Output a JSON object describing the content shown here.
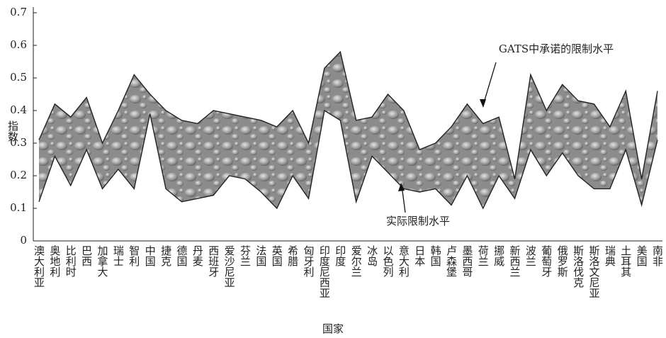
{
  "chart_data": {
    "type": "area",
    "x_label": "国家",
    "y_label": "指数",
    "categories": [
      "澳大利亚",
      "奥地利",
      "比利时",
      "巴西",
      "加拿大",
      "瑞士",
      "智利",
      "中国",
      "捷克",
      "德国",
      "丹麦",
      "西班牙",
      "爱沙尼亚",
      "芬兰",
      "法国",
      "英国",
      "希腊",
      "匈牙利",
      "印度尼西亚",
      "印度",
      "爱尔兰",
      "冰岛",
      "以色列",
      "意大利",
      "日本",
      "韩国",
      "卢森堡",
      "墨西哥",
      "荷兰",
      "挪威",
      "新西兰",
      "波兰",
      "葡萄牙",
      "俄罗斯",
      "斯洛伐克",
      "斯洛文尼亚",
      "瑞典",
      "土耳其",
      "美国",
      "南非"
    ],
    "series": [
      {
        "name": "GATS中承诺的限制水平",
        "color": "#222222",
        "values": [
          0.31,
          0.42,
          0.38,
          0.44,
          0.3,
          0.4,
          0.51,
          0.45,
          0.4,
          0.37,
          0.36,
          0.4,
          0.39,
          0.38,
          0.37,
          0.35,
          0.4,
          0.3,
          0.53,
          0.58,
          0.37,
          0.38,
          0.45,
          0.4,
          0.28,
          0.3,
          0.35,
          0.42,
          0.36,
          0.38,
          0.19,
          0.51,
          0.4,
          0.48,
          0.43,
          0.42,
          0.35,
          0.46,
          0.19,
          0.46
        ]
      },
      {
        "name": "实际限制水平",
        "color": "#222222",
        "values": [
          0.12,
          0.26,
          0.17,
          0.28,
          0.16,
          0.22,
          0.16,
          0.39,
          0.16,
          0.12,
          0.13,
          0.14,
          0.2,
          0.19,
          0.15,
          0.1,
          0.2,
          0.13,
          0.4,
          0.37,
          0.12,
          0.26,
          0.21,
          0.16,
          0.15,
          0.16,
          0.11,
          0.2,
          0.1,
          0.2,
          0.13,
          0.28,
          0.2,
          0.27,
          0.2,
          0.16,
          0.16,
          0.28,
          0.11,
          0.31
        ]
      }
    ],
    "ylim": [
      0,
      0.7
    ],
    "yticks": [
      0,
      0.1,
      0.2,
      0.3,
      0.4,
      0.5,
      0.6,
      0.7
    ]
  }
}
